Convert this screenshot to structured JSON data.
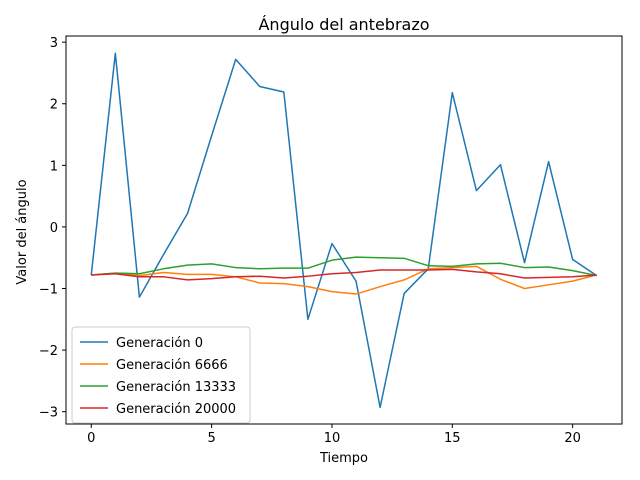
{
  "chart_data": {
    "type": "line",
    "title": "Ángulo del antebrazo",
    "xlabel": "Tiempo",
    "ylabel": "Valor del ángulo",
    "xlim": [
      -1.05,
      22.05
    ],
    "ylim": [
      -3.2,
      3.1
    ],
    "xticks": [
      0,
      5,
      10,
      15,
      20
    ],
    "yticks": [
      -3,
      -2,
      -1,
      0,
      1,
      2,
      3
    ],
    "xtick_labels": [
      "0",
      "5",
      "10",
      "15",
      "20"
    ],
    "ytick_labels": [
      "−3",
      "−2",
      "−1",
      "0",
      "1",
      "2",
      "3"
    ],
    "grid": false,
    "legend_position": "lower-left",
    "x": [
      0,
      1,
      2,
      3,
      4,
      5,
      6,
      7,
      8,
      9,
      10,
      11,
      12,
      13,
      14,
      15,
      16,
      17,
      18,
      19,
      20,
      21
    ],
    "series": [
      {
        "name": "Generación 0",
        "color": "#1f77b4",
        "values": [
          -0.78,
          2.82,
          -1.14,
          -0.45,
          0.22,
          1.48,
          2.72,
          2.28,
          2.19,
          -1.5,
          -0.27,
          -0.88,
          -2.93,
          -1.08,
          -0.68,
          2.18,
          0.59,
          1.01,
          -0.58,
          1.06,
          -0.53,
          -0.79
        ]
      },
      {
        "name": "Generación 6666",
        "color": "#ff7f0e",
        "values": [
          -0.78,
          -0.75,
          -0.79,
          -0.74,
          -0.77,
          -0.77,
          -0.81,
          -0.91,
          -0.92,
          -0.97,
          -1.05,
          -1.09,
          -0.97,
          -0.86,
          -0.68,
          -0.66,
          -0.64,
          -0.85,
          -1.0,
          -0.94,
          -0.88,
          -0.78
        ]
      },
      {
        "name": "Generación 13333",
        "color": "#2ca02c",
        "values": [
          -0.78,
          -0.75,
          -0.76,
          -0.68,
          -0.62,
          -0.6,
          -0.66,
          -0.68,
          -0.67,
          -0.67,
          -0.54,
          -0.49,
          -0.5,
          -0.51,
          -0.63,
          -0.64,
          -0.6,
          -0.59,
          -0.66,
          -0.65,
          -0.71,
          -0.79
        ]
      },
      {
        "name": "Generación 20000",
        "color": "#d62728",
        "values": [
          -0.78,
          -0.76,
          -0.81,
          -0.81,
          -0.86,
          -0.84,
          -0.81,
          -0.8,
          -0.83,
          -0.8,
          -0.76,
          -0.74,
          -0.7,
          -0.7,
          -0.7,
          -0.69,
          -0.73,
          -0.76,
          -0.83,
          -0.82,
          -0.81,
          -0.78
        ]
      }
    ]
  }
}
